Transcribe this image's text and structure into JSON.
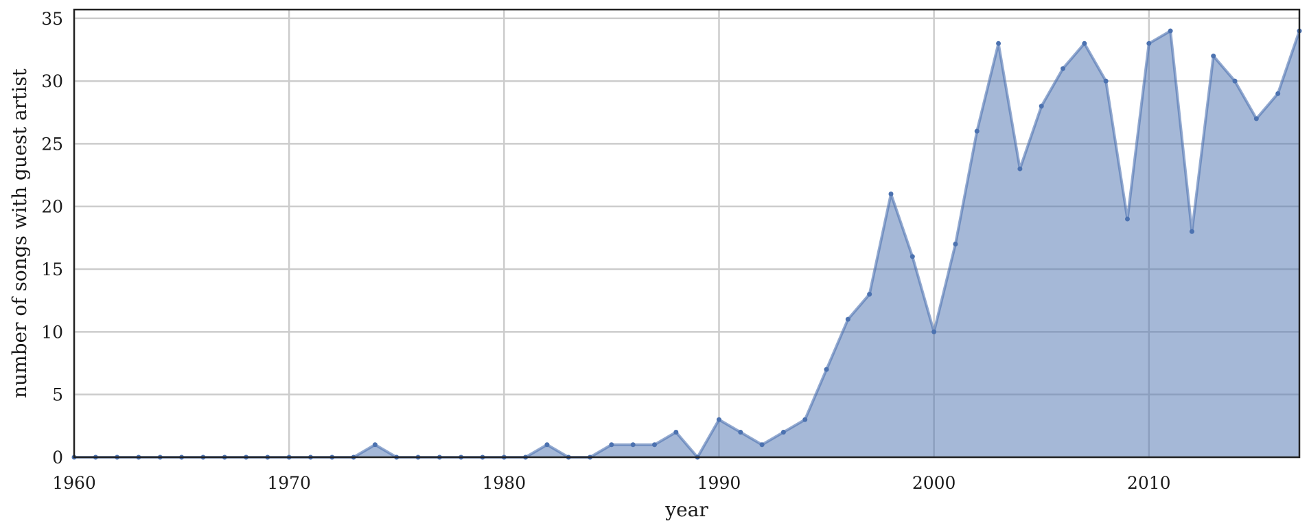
{
  "chart_data": {
    "type": "area",
    "xlabel": "year",
    "ylabel": "number of songs with guest artist",
    "xlim": [
      1960,
      2017
    ],
    "ylim": [
      0,
      35.7
    ],
    "x_ticks": [
      1960,
      1970,
      1980,
      1990,
      2000,
      2010
    ],
    "y_ticks": [
      0,
      5,
      10,
      15,
      20,
      25,
      30,
      35
    ],
    "grid": true,
    "series": [
      {
        "x": [
          1960,
          1961,
          1962,
          1963,
          1964,
          1965,
          1966,
          1967,
          1968,
          1969,
          1970,
          1971,
          1972,
          1973,
          1974,
          1975,
          1976,
          1977,
          1978,
          1979,
          1980,
          1981,
          1982,
          1983,
          1984,
          1985,
          1986,
          1987,
          1988,
          1989,
          1990,
          1991,
          1992,
          1993,
          1994,
          1995,
          1996,
          1997,
          1998,
          1999,
          2000,
          2001,
          2002,
          2003,
          2004,
          2005,
          2006,
          2007,
          2008,
          2009,
          2010,
          2011,
          2012,
          2013,
          2014,
          2015,
          2016,
          2017
        ],
        "values": [
          0,
          0,
          0,
          0,
          0,
          0,
          0,
          0,
          0,
          0,
          0,
          0,
          0,
          0,
          1,
          0,
          0,
          0,
          0,
          0,
          0,
          0,
          1,
          0,
          0,
          1,
          1,
          1,
          2,
          0,
          3,
          2,
          1,
          2,
          3,
          7,
          11,
          13,
          21,
          16,
          10,
          17,
          26,
          33,
          23,
          28,
          31,
          33,
          30,
          19,
          33,
          34,
          18,
          32,
          30,
          27,
          29,
          34
        ],
        "color": "#4c72b0"
      }
    ]
  }
}
